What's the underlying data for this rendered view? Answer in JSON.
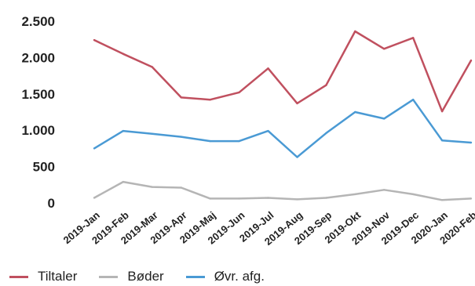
{
  "chart_data": {
    "type": "line",
    "categories": [
      "2019-Jan",
      "2019-Feb",
      "2019-Mar",
      "2019-Apr",
      "2019-Maj",
      "2019-Jun",
      "2019-Jul",
      "2019-Aug",
      "2019-Sep",
      "2019-Okt",
      "2019-Nov",
      "2019-Dec",
      "2020-Jan",
      "2020-Feb"
    ],
    "y_tick_labels": [
      "0",
      "500",
      "1.000",
      "1.500",
      "2.000",
      "2.500"
    ],
    "y_ticks": [
      0,
      500,
      1000,
      1500,
      2000,
      2500
    ],
    "ylim": [
      0,
      2500
    ],
    "grid": false,
    "legend_position": "bottom-left",
    "series": [
      {
        "name": "Tiltaler",
        "color": "#c0505f",
        "values": [
          2240,
          2050,
          1870,
          1450,
          1420,
          1520,
          1850,
          1370,
          1620,
          2360,
          2120,
          2270,
          1260,
          1960
        ]
      },
      {
        "name": "Bøder",
        "color": "#b5b5b5",
        "values": [
          70,
          290,
          220,
          210,
          60,
          60,
          70,
          50,
          70,
          120,
          180,
          120,
          40,
          60
        ]
      },
      {
        "name": "Øvr. afg.",
        "color": "#4a9ad4",
        "values": [
          750,
          990,
          950,
          910,
          850,
          850,
          990,
          630,
          960,
          1250,
          1160,
          1420,
          860,
          830
        ]
      }
    ]
  }
}
